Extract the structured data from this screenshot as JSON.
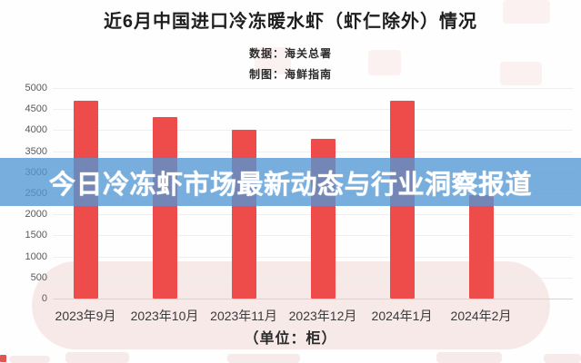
{
  "title": "近6月中国进口冷冻暖水虾（虾仁除外）情况",
  "source_line": "数据：海关总署",
  "credit_line": "制图：海鲜指南",
  "overlay_banner": {
    "text": "今日冷冻虾市场最新动态与行业洞察报道",
    "background_color": "rgba(82,151,211,0.78)",
    "text_color": "#ffffff"
  },
  "unit_label": "（单位：柜）",
  "colors": {
    "bar": "#ee4b4b",
    "pink_blob": "#f8e9e9",
    "gridline": "#f0eeee",
    "axis_line": "#d8d4d4",
    "tick_text": "#5a5a5a",
    "title_text": "#1f1f1f"
  },
  "chart_data": {
    "type": "bar",
    "categories": [
      "2023年9月",
      "2023年10月",
      "2023年11月",
      "2023年12月",
      "2024年1月",
      "2024年2月"
    ],
    "values": [
      4700,
      4300,
      4000,
      3800,
      4700,
      2450
    ],
    "title": "近6月中国进口冷冻暖水虾（虾仁除外）情况",
    "xlabel": "（单位：柜）",
    "ylabel": "",
    "ylim": [
      0,
      5000
    ],
    "ytick_step": 500,
    "grid": true,
    "legend": false,
    "bar_color": "#ee4b4b"
  }
}
